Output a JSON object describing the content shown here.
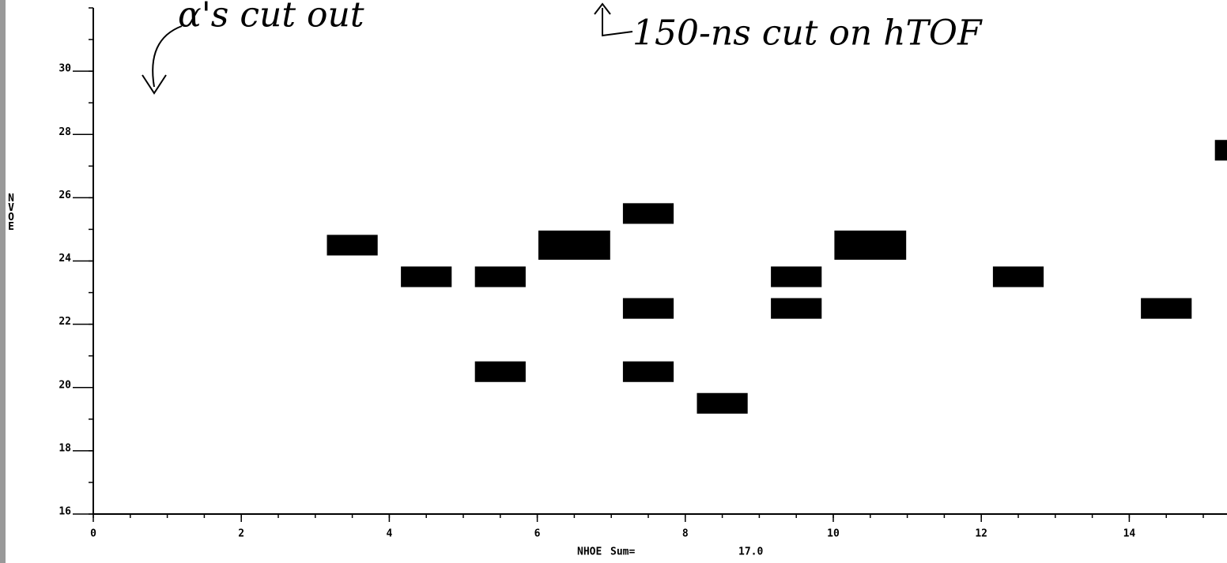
{
  "chart_data": {
    "type": "hist2d",
    "annotations": [
      "α's cut out",
      "150-ns cut on hTOF"
    ],
    "xlabel": "NHOE",
    "ylabel": "NVOE",
    "sum_label": "Sum=",
    "sum": {
      "value": 17,
      "label": "17.0"
    },
    "x": [
      3,
      4,
      5,
      5,
      6,
      7,
      7,
      7,
      8,
      9,
      9,
      10,
      12,
      14,
      15
    ],
    "y": [
      24,
      23,
      23,
      20,
      24,
      25,
      22,
      20,
      19,
      23,
      22,
      24,
      23,
      22,
      27
    ],
    "values": [
      1,
      1,
      1,
      1,
      2,
      1,
      1,
      1,
      1,
      1,
      1,
      2,
      1,
      1,
      1
    ],
    "color": "#000000",
    "xlim": [
      0,
      15.3
    ],
    "ylim": [
      16,
      32
    ],
    "xticks": [
      0,
      2,
      4,
      6,
      8,
      10,
      12,
      14
    ],
    "yticks": [
      16,
      18,
      20,
      22,
      24,
      26,
      28,
      30
    ]
  }
}
